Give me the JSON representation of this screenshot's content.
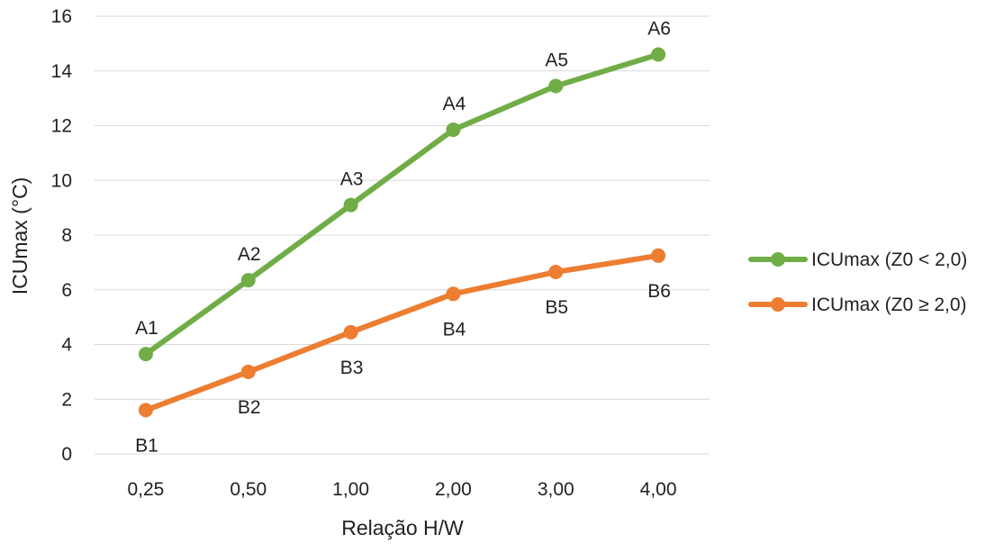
{
  "chart_data": {
    "type": "line",
    "title": "",
    "xlabel": "Relação H/W",
    "ylabel": "ICUmax (°C)",
    "ylim": [
      0,
      16
    ],
    "yticks": [
      "0",
      "2",
      "4",
      "6",
      "8",
      "10",
      "12",
      "14",
      "16"
    ],
    "categories": [
      "0,25",
      "0,50",
      "1,00",
      "2,00",
      "3,00",
      "4,00"
    ],
    "grid": true,
    "legend_position": "right",
    "series": [
      {
        "name": "ICUmax (Z0 < 2,0)",
        "color": "#70ad47",
        "values": [
          3.65,
          6.35,
          9.1,
          11.85,
          13.45,
          14.6
        ],
        "point_labels": [
          "A1",
          "A2",
          "A3",
          "A4",
          "A5",
          "A6"
        ],
        "label_position": "above"
      },
      {
        "name": "ICUmax (Z0 ≥ 2,0)",
        "color": "#ed7d31",
        "values": [
          1.6,
          3.0,
          4.45,
          5.85,
          6.65,
          7.25
        ],
        "point_labels": [
          "B1",
          "B2",
          "B3",
          "B4",
          "B5",
          "B6"
        ],
        "label_position": "below"
      }
    ]
  }
}
